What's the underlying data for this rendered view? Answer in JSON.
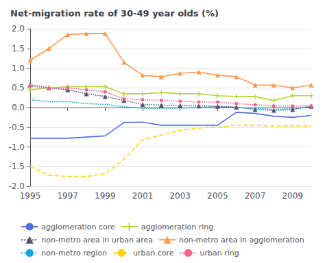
{
  "chart_data": {
    "type": "line",
    "title": "Net-migration rate of 30-49 year olds (%)",
    "x": [
      1995,
      1996,
      1997,
      1998,
      1999,
      2000,
      2001,
      2002,
      2003,
      2004,
      2005,
      2006,
      2007,
      2008,
      2009,
      2010
    ],
    "series": [
      {
        "name": "agglomeration core",
        "line_style": "solid",
        "marker": "none",
        "values": [
          -0.78,
          -0.78,
          -0.78,
          -0.75,
          -0.72,
          -0.38,
          -0.37,
          -0.45,
          -0.45,
          -0.45,
          -0.45,
          -0.12,
          -0.15,
          -0.22,
          -0.25,
          -0.2
        ]
      },
      {
        "name": "agglomeration ring",
        "line_style": "solid",
        "marker": "plus",
        "values": [
          0.45,
          0.5,
          0.53,
          0.53,
          0.53,
          0.35,
          0.35,
          0.38,
          0.35,
          0.35,
          0.3,
          0.28,
          0.28,
          0.18,
          0.3,
          0.3
        ]
      },
      {
        "name": "non-metro area in urban area",
        "line_style": "dotted",
        "marker": "triangle",
        "values": [
          0.58,
          0.5,
          0.45,
          0.35,
          0.28,
          0.18,
          0.08,
          0.06,
          0.05,
          0.04,
          0.03,
          0.01,
          -0.05,
          -0.07,
          -0.05,
          0.03
        ]
      },
      {
        "name": "non-metro area in agglomeration",
        "line_style": "solid",
        "marker": "triangle",
        "values": [
          1.2,
          1.5,
          1.85,
          1.88,
          1.88,
          1.15,
          0.82,
          0.78,
          0.87,
          0.9,
          0.82,
          0.78,
          0.57,
          0.57,
          0.5,
          0.57
        ]
      },
      {
        "name": "non-metro region",
        "line_style": "dotted",
        "marker": "none",
        "values": [
          0.2,
          0.15,
          0.15,
          0.1,
          0.08,
          0.02,
          -0.02,
          -0.02,
          -0.02,
          0.0,
          0.02,
          0.0,
          -0.02,
          -0.05,
          -0.03,
          0.02
        ]
      },
      {
        "name": "urban core",
        "line_style": "dashed",
        "marker": "none",
        "values": [
          -1.5,
          -1.72,
          -1.75,
          -1.75,
          -1.68,
          -1.32,
          -0.82,
          -0.7,
          -0.58,
          -0.52,
          -0.5,
          -0.45,
          -0.45,
          -0.47,
          -0.47,
          -0.47
        ]
      },
      {
        "name": "urban ring",
        "line_style": "dotted",
        "marker": "circle",
        "values": [
          0.55,
          0.48,
          0.5,
          0.45,
          0.4,
          0.22,
          0.2,
          0.18,
          0.16,
          0.14,
          0.14,
          0.1,
          0.07,
          0.04,
          0.04,
          0.04
        ]
      }
    ],
    "xlim": [
      1995,
      2010
    ],
    "xticks": [
      1995,
      1997,
      1999,
      2001,
      2003,
      2005,
      2007,
      2009
    ],
    "ylim": [
      -2.0,
      2.0
    ],
    "yticks": [
      {
        "value": -2.0,
        "label": "-2.0"
      },
      -1.5,
      {
        "value": -1.0,
        "label": "-1.0"
      },
      -0.5,
      {
        "value": 0.0,
        "label": "0.0"
      },
      0.5,
      {
        "value": 1.0,
        "label": "1.0"
      },
      1.5,
      {
        "value": 2.0,
        "label": "2.0"
      }
    ],
    "grid": true,
    "legend": "bottom"
  }
}
